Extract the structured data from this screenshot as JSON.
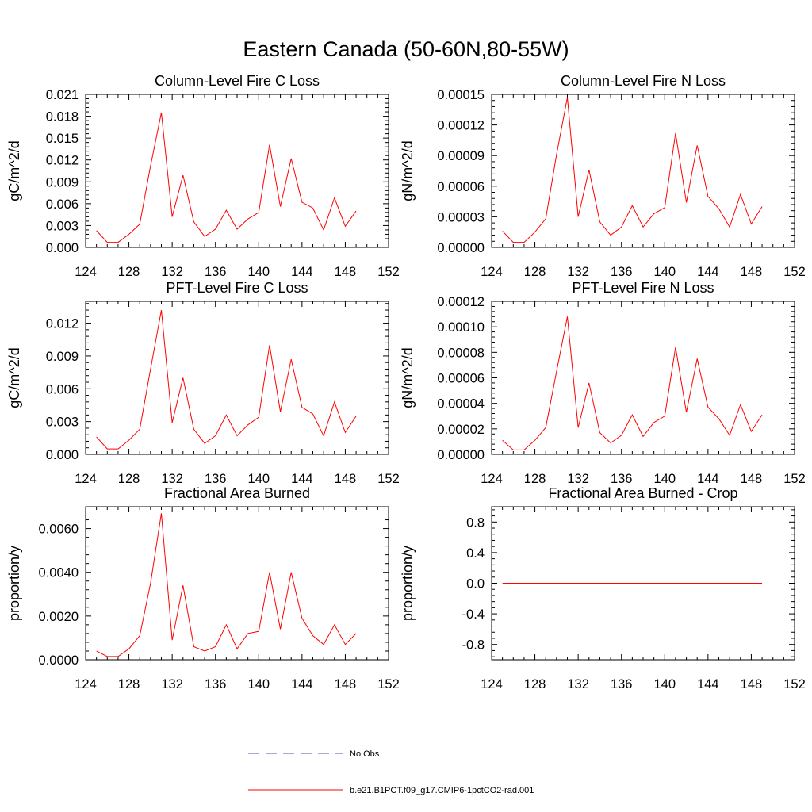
{
  "title": "Eastern Canada (50-60N,80-55W)",
  "chart_data": [
    {
      "type": "line",
      "title": "Column-Level Fire C Loss",
      "ylabel": "gC/m^2/d",
      "xlim": [
        124,
        152
      ],
      "ylim": [
        0,
        0.021
      ],
      "xticks": [
        "124",
        "128",
        "132",
        "136",
        "140",
        "144",
        "148",
        "152"
      ],
      "yticks": [
        "0.000",
        "0.003",
        "0.006",
        "0.009",
        "0.012",
        "0.015",
        "0.018",
        "0.021"
      ],
      "x": [
        125,
        126,
        127,
        128,
        129,
        130,
        131,
        132,
        133,
        134,
        135,
        136,
        137,
        138,
        139,
        140,
        141,
        142,
        143,
        144,
        145,
        146,
        147,
        148,
        149
      ],
      "series": [
        {
          "name": "b.e21.B1PCT.f09_g17.CMIP6-1pctCO2-rad.001",
          "color": "#ff0000",
          "values": [
            0.0023,
            0.0007,
            0.0007,
            0.0018,
            0.0032,
            0.0112,
            0.0185,
            0.0042,
            0.0099,
            0.0035,
            0.0015,
            0.0025,
            0.0051,
            0.0025,
            0.0039,
            0.0048,
            0.0141,
            0.0056,
            0.0122,
            0.0062,
            0.0054,
            0.0024,
            0.0068,
            0.0029,
            0.005
          ]
        }
      ]
    },
    {
      "type": "line",
      "title": "Column-Level Fire N Loss",
      "ylabel": "gN/m^2/d",
      "xlim": [
        124,
        152
      ],
      "ylim": [
        0,
        0.00015
      ],
      "xticks": [
        "124",
        "128",
        "132",
        "136",
        "140",
        "144",
        "148",
        "152"
      ],
      "yticks": [
        "0.00000",
        "0.00003",
        "0.00006",
        "0.00009",
        "0.00012",
        "0.00015"
      ],
      "x": [
        125,
        126,
        127,
        128,
        129,
        130,
        131,
        132,
        133,
        134,
        135,
        136,
        137,
        138,
        139,
        140,
        141,
        142,
        143,
        144,
        145,
        146,
        147,
        148,
        149
      ],
      "series": [
        {
          "name": "b.e21.B1PCT.f09_g17.CMIP6-1pctCO2-rad.001",
          "color": "#ff0000",
          "values": [
            1.6e-05,
            5e-06,
            5e-06,
            1.5e-05,
            2.8e-05,
            9.1e-05,
            0.000147,
            3e-05,
            7.6e-05,
            2.5e-05,
            1.2e-05,
            2e-05,
            4.1e-05,
            2e-05,
            3.3e-05,
            3.9e-05,
            0.000112,
            4.4e-05,
            0.0001,
            5e-05,
            3.8e-05,
            2e-05,
            5.2e-05,
            2.3e-05,
            4e-05
          ]
        }
      ]
    },
    {
      "type": "line",
      "title": "PFT-Level Fire C Loss",
      "ylabel": "gC/m^2/d",
      "xlim": [
        124,
        152
      ],
      "ylim": [
        0,
        0.014
      ],
      "xticks": [
        "124",
        "128",
        "132",
        "136",
        "140",
        "144",
        "148",
        "152"
      ],
      "yticks": [
        "0.000",
        "0.003",
        "0.006",
        "0.009",
        "0.012"
      ],
      "x": [
        125,
        126,
        127,
        128,
        129,
        130,
        131,
        132,
        133,
        134,
        135,
        136,
        137,
        138,
        139,
        140,
        141,
        142,
        143,
        144,
        145,
        146,
        147,
        148,
        149
      ],
      "series": [
        {
          "name": "b.e21.B1PCT.f09_g17.CMIP6-1pctCO2-rad.001",
          "color": "#ff0000",
          "values": [
            0.0016,
            0.0005,
            0.0005,
            0.0013,
            0.0023,
            0.0078,
            0.0132,
            0.0029,
            0.007,
            0.0023,
            0.001,
            0.0017,
            0.0036,
            0.0017,
            0.0027,
            0.0034,
            0.01,
            0.0039,
            0.0087,
            0.0043,
            0.0037,
            0.0017,
            0.0048,
            0.002,
            0.0035
          ]
        }
      ]
    },
    {
      "type": "line",
      "title": "PFT-Level Fire N Loss",
      "ylabel": "gN/m^2/d",
      "xlim": [
        124,
        152
      ],
      "ylim": [
        0,
        0.00012
      ],
      "xticks": [
        "124",
        "128",
        "132",
        "136",
        "140",
        "144",
        "148",
        "152"
      ],
      "yticks": [
        "0.00000",
        "0.00002",
        "0.00004",
        "0.00006",
        "0.00008",
        "0.00010",
        "0.00012"
      ],
      "x": [
        125,
        126,
        127,
        128,
        129,
        130,
        131,
        132,
        133,
        134,
        135,
        136,
        137,
        138,
        139,
        140,
        141,
        142,
        143,
        144,
        145,
        146,
        147,
        148,
        149
      ],
      "series": [
        {
          "name": "b.e21.B1PCT.f09_g17.CMIP6-1pctCO2-rad.001",
          "color": "#ff0000",
          "values": [
            1.1e-05,
            3.5e-06,
            3.5e-06,
            1.1e-05,
            2.1e-05,
            6.5e-05,
            0.000108,
            2.1e-05,
            5.6e-05,
            1.7e-05,
            9e-06,
            1.5e-05,
            3.1e-05,
            1.4e-05,
            2.5e-05,
            3e-05,
            8.4e-05,
            3.3e-05,
            7.5e-05,
            3.7e-05,
            2.8e-05,
            1.5e-05,
            3.9e-05,
            1.8e-05,
            3.1e-05
          ]
        }
      ]
    },
    {
      "type": "line",
      "title": "Fractional Area Burned",
      "ylabel": "proportion/y",
      "xlim": [
        124,
        152
      ],
      "ylim": [
        0,
        0.007
      ],
      "xticks": [
        "124",
        "128",
        "132",
        "136",
        "140",
        "144",
        "148",
        "152"
      ],
      "yticks": [
        "0.0000",
        "0.0020",
        "0.0040",
        "0.0060"
      ],
      "x": [
        125,
        126,
        127,
        128,
        129,
        130,
        131,
        132,
        133,
        134,
        135,
        136,
        137,
        138,
        139,
        140,
        141,
        142,
        143,
        144,
        145,
        146,
        147,
        148,
        149
      ],
      "series": [
        {
          "name": "b.e21.B1PCT.f09_g17.CMIP6-1pctCO2-rad.001",
          "color": "#ff0000",
          "values": [
            0.0004,
            0.00015,
            0.00015,
            0.0005,
            0.0011,
            0.0035,
            0.0067,
            0.0009,
            0.0034,
            0.0006,
            0.0004,
            0.0006,
            0.0016,
            0.0005,
            0.0012,
            0.0013,
            0.004,
            0.0014,
            0.004,
            0.0019,
            0.0011,
            0.0007,
            0.0016,
            0.0007,
            0.0012
          ]
        }
      ]
    },
    {
      "type": "line",
      "title": "Fractional Area Burned - Crop",
      "ylabel": "proportion/y",
      "xlim": [
        124,
        152
      ],
      "ylim": [
        -1,
        1
      ],
      "xticks": [
        "124",
        "128",
        "132",
        "136",
        "140",
        "144",
        "148",
        "152"
      ],
      "yticks": [
        "-0.8",
        "-0.4",
        "0.0",
        "0.4",
        "0.8"
      ],
      "x": [
        125,
        126,
        127,
        128,
        129,
        130,
        131,
        132,
        133,
        134,
        135,
        136,
        137,
        138,
        139,
        140,
        141,
        142,
        143,
        144,
        145,
        146,
        147,
        148,
        149
      ],
      "series": [
        {
          "name": "b.e21.B1PCT.f09_g17.CMIP6-1pctCO2-rad.001",
          "color": "#ff0000",
          "values": [
            0,
            0,
            0,
            0,
            0,
            0,
            0,
            0,
            0,
            0,
            0,
            0,
            0,
            0,
            0,
            0,
            0,
            0,
            0,
            0,
            0,
            0,
            0,
            0,
            0
          ]
        }
      ]
    }
  ],
  "legend": {
    "entries": [
      {
        "label": "No Obs",
        "color": "#4a5aa0",
        "style": "dashed"
      },
      {
        "label": "b.e21.B1PCT.f09_g17.CMIP6-1pctCO2-rad.001",
        "color": "#ff0000",
        "style": "solid"
      }
    ]
  }
}
